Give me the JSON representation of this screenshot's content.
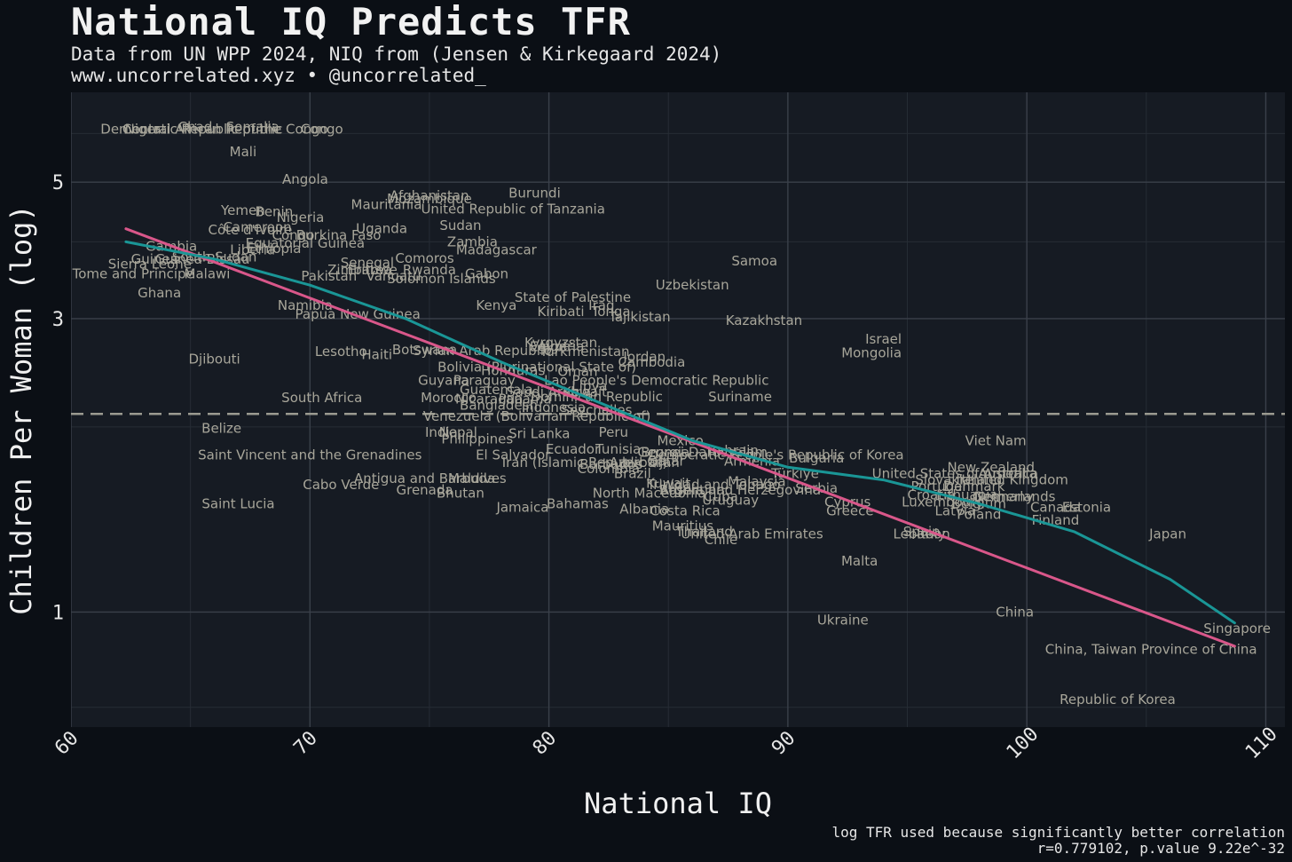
{
  "header": {
    "title": "National IQ Predicts TFR",
    "subtitle": "Data from UN WPP 2024, NIQ from (Jensen & Kirkegaard 2024)",
    "byline": "www.uncorrelated.xyz • @uncorrelated_"
  },
  "footer": {
    "note": "log TFR used because significantly better correlation",
    "stats": "r=0.779102, p.value 9.22e^-32"
  },
  "colors": {
    "background": "#0b0f15",
    "panel": "#161b23",
    "grid": "#3a404a",
    "label": "#a8a69a",
    "linear_fit": "#d9578a",
    "smooth_fit": "#1a9696",
    "reference_line": "#9a9a90"
  },
  "chart_data": {
    "type": "scatter",
    "xlabel": "National IQ",
    "ylabel": "Children Per Woman (log)",
    "x_ticks": [
      60,
      70,
      80,
      90,
      100,
      110
    ],
    "y_ticks": [
      1,
      3,
      5
    ],
    "y_scale": "log",
    "xlim": [
      60,
      110.8
    ],
    "ylim": [
      0.65,
      7.0
    ],
    "grid": true,
    "reference_line": {
      "y": 2.1,
      "style": "dashed"
    },
    "fits": [
      {
        "kind": "linear",
        "color": "#d9578a",
        "points": [
          [
            62.3,
            4.2
          ],
          [
            108.7,
            0.88
          ]
        ]
      },
      {
        "kind": "loess",
        "color": "#1a9696",
        "points": [
          [
            62.3,
            4.0
          ],
          [
            66,
            3.75
          ],
          [
            70,
            3.4
          ],
          [
            74,
            3.0
          ],
          [
            78,
            2.55
          ],
          [
            82,
            2.2
          ],
          [
            86,
            1.9
          ],
          [
            90,
            1.72
          ],
          [
            94,
            1.64
          ],
          [
            98,
            1.5
          ],
          [
            102,
            1.35
          ],
          [
            106,
            1.13
          ],
          [
            108.7,
            0.96
          ]
        ]
      }
    ],
    "points": [
      {
        "label": "Niger",
        "x": 63.0,
        "y": 6.1
      },
      {
        "label": "Democratic Republic of the Congo",
        "x": 66.0,
        "y": 6.1
      },
      {
        "label": "Central African Republic",
        "x": 65.5,
        "y": 6.1
      },
      {
        "label": "Chad",
        "x": 65.2,
        "y": 6.15
      },
      {
        "label": "Somalia",
        "x": 67.6,
        "y": 6.15
      },
      {
        "label": "Congo",
        "x": 70.5,
        "y": 6.1
      },
      {
        "label": "Mali",
        "x": 67.2,
        "y": 5.6
      },
      {
        "label": "Angola",
        "x": 69.8,
        "y": 5.05
      },
      {
        "label": "Burundi",
        "x": 79.4,
        "y": 4.8
      },
      {
        "label": "Afghanistan",
        "x": 75.0,
        "y": 4.75
      },
      {
        "label": "Mozambique",
        "x": 75.0,
        "y": 4.7
      },
      {
        "label": "Mauritania",
        "x": 73.2,
        "y": 4.6
      },
      {
        "label": "United Republic of Tanzania",
        "x": 78.5,
        "y": 4.52
      },
      {
        "label": "Yemen",
        "x": 67.2,
        "y": 4.5
      },
      {
        "label": "Benin",
        "x": 68.5,
        "y": 4.48
      },
      {
        "label": "Nigeria",
        "x": 69.6,
        "y": 4.38
      },
      {
        "label": "Cameroon",
        "x": 67.8,
        "y": 4.22
      },
      {
        "label": "Côte d'Ivoire",
        "x": 67.5,
        "y": 4.18
      },
      {
        "label": "Uganda",
        "x": 73.0,
        "y": 4.2
      },
      {
        "label": "Sudan",
        "x": 76.3,
        "y": 4.25
      },
      {
        "label": "Congo",
        "x": 69.3,
        "y": 4.1
      },
      {
        "label": "Burkina Faso",
        "x": 71.2,
        "y": 4.1
      },
      {
        "label": "Equatorial Guinea",
        "x": 69.8,
        "y": 3.98
      },
      {
        "label": "Zambia",
        "x": 76.8,
        "y": 4.0
      },
      {
        "label": "Gambia",
        "x": 64.2,
        "y": 3.93
      },
      {
        "label": "Liberia",
        "x": 67.6,
        "y": 3.88
      },
      {
        "label": "Ethiopia",
        "x": 68.5,
        "y": 3.9
      },
      {
        "label": "Madagascar",
        "x": 77.8,
        "y": 3.88
      },
      {
        "label": "Guinea",
        "x": 63.5,
        "y": 3.75
      },
      {
        "label": "South Sudan",
        "x": 66.0,
        "y": 3.78
      },
      {
        "label": "Guinea-Bissau",
        "x": 65.5,
        "y": 3.75
      },
      {
        "label": "Comoros",
        "x": 74.8,
        "y": 3.76
      },
      {
        "label": "Senegal",
        "x": 72.4,
        "y": 3.7
      },
      {
        "label": "Sierra Leone",
        "x": 63.3,
        "y": 3.68
      },
      {
        "label": "Samoa",
        "x": 88.6,
        "y": 3.72
      },
      {
        "label": "Zimbabwe",
        "x": 72.2,
        "y": 3.6
      },
      {
        "label": "Eritrea",
        "x": 72.5,
        "y": 3.6
      },
      {
        "label": "Rwanda",
        "x": 75.0,
        "y": 3.6
      },
      {
        "label": "Sao Tome and Principe",
        "x": 62.0,
        "y": 3.55
      },
      {
        "label": "Malawi",
        "x": 65.7,
        "y": 3.55
      },
      {
        "label": "Gabon",
        "x": 77.4,
        "y": 3.55
      },
      {
        "label": "Pakistan",
        "x": 70.8,
        "y": 3.52
      },
      {
        "label": "Vanuatu",
        "x": 73.5,
        "y": 3.52
      },
      {
        "label": "Solomon Islands",
        "x": 75.5,
        "y": 3.48
      },
      {
        "label": "Uzbekistan",
        "x": 86.0,
        "y": 3.4
      },
      {
        "label": "Ghana",
        "x": 63.7,
        "y": 3.3
      },
      {
        "label": "State of Palestine",
        "x": 81.0,
        "y": 3.25
      },
      {
        "label": "Namibia",
        "x": 69.8,
        "y": 3.15
      },
      {
        "label": "Kenya",
        "x": 77.8,
        "y": 3.15
      },
      {
        "label": "Iraq",
        "x": 82.2,
        "y": 3.15
      },
      {
        "label": "Kiribati",
        "x": 80.5,
        "y": 3.08
      },
      {
        "label": "Tonga",
        "x": 82.6,
        "y": 3.08
      },
      {
        "label": "Papua New Guinea",
        "x": 72.0,
        "y": 3.05
      },
      {
        "label": "Tajikistan",
        "x": 83.8,
        "y": 3.02
      },
      {
        "label": "Kazakhstan",
        "x": 89.0,
        "y": 2.98
      },
      {
        "label": "Israel",
        "x": 94.0,
        "y": 2.78
      },
      {
        "label": "Kyrgyzstan",
        "x": 80.5,
        "y": 2.74
      },
      {
        "label": "Egypt",
        "x": 80.0,
        "y": 2.7
      },
      {
        "label": "Algeria",
        "x": 80.5,
        "y": 2.7
      },
      {
        "label": "Botswana",
        "x": 74.8,
        "y": 2.67
      },
      {
        "label": "Syrian Arab Republic",
        "x": 77.2,
        "y": 2.66
      },
      {
        "label": "Turkmenistan",
        "x": 81.5,
        "y": 2.65
      },
      {
        "label": "Lesotho",
        "x": 71.3,
        "y": 2.65
      },
      {
        "label": "Mongolia",
        "x": 93.5,
        "y": 2.64
      },
      {
        "label": "Haiti",
        "x": 72.8,
        "y": 2.62
      },
      {
        "label": "Jordan",
        "x": 84.0,
        "y": 2.6
      },
      {
        "label": "Djibouti",
        "x": 66.0,
        "y": 2.58
      },
      {
        "label": "Cambodia",
        "x": 84.3,
        "y": 2.55
      },
      {
        "label": "Bolivia (Plurinational State of)",
        "x": 79.5,
        "y": 2.5
      },
      {
        "label": "Honduras",
        "x": 78.5,
        "y": 2.47
      },
      {
        "label": "Oman",
        "x": 81.2,
        "y": 2.46
      },
      {
        "label": "Guyana",
        "x": 75.6,
        "y": 2.38
      },
      {
        "label": "Paraguay",
        "x": 77.3,
        "y": 2.38
      },
      {
        "label": "Lao People's Democratic Republic",
        "x": 84.5,
        "y": 2.38
      },
      {
        "label": "Libya",
        "x": 81.7,
        "y": 2.33
      },
      {
        "label": "Guatemala",
        "x": 77.8,
        "y": 2.3
      },
      {
        "label": "Saudi Arabia",
        "x": 80.0,
        "y": 2.28
      },
      {
        "label": "Kuwait",
        "x": 81.5,
        "y": 2.28
      },
      {
        "label": "South Africa",
        "x": 70.5,
        "y": 2.23
      },
      {
        "label": "Morocco",
        "x": 75.8,
        "y": 2.23
      },
      {
        "label": "Nicaragua",
        "x": 77.5,
        "y": 2.22
      },
      {
        "label": "Dominican Republic",
        "x": 82.0,
        "y": 2.24
      },
      {
        "label": "Suriname",
        "x": 88.0,
        "y": 2.24
      },
      {
        "label": "Panama",
        "x": 79.0,
        "y": 2.22
      },
      {
        "label": "Bangladesh",
        "x": 77.9,
        "y": 2.17
      },
      {
        "label": "Indonesia",
        "x": 80.2,
        "y": 2.15
      },
      {
        "label": "Seychelles",
        "x": 82.0,
        "y": 2.13
      },
      {
        "label": "Venezuela (Bolivarian Republic of)",
        "x": 79.5,
        "y": 2.08
      },
      {
        "label": "Belize",
        "x": 66.3,
        "y": 1.99
      },
      {
        "label": "India",
        "x": 75.5,
        "y": 1.96
      },
      {
        "label": "Nepal",
        "x": 76.2,
        "y": 1.96
      },
      {
        "label": "Peru",
        "x": 82.7,
        "y": 1.96
      },
      {
        "label": "Sri Lanka",
        "x": 79.6,
        "y": 1.95
      },
      {
        "label": "Philippines",
        "x": 77.0,
        "y": 1.91
      },
      {
        "label": "Mexico",
        "x": 85.5,
        "y": 1.9
      },
      {
        "label": "Viet Nam",
        "x": 98.7,
        "y": 1.9
      },
      {
        "label": "Ecuador",
        "x": 81.0,
        "y": 1.84
      },
      {
        "label": "Tunisia",
        "x": 82.9,
        "y": 1.84
      },
      {
        "label": "Bahrain",
        "x": 87.7,
        "y": 1.83
      },
      {
        "label": "El Salvador",
        "x": 78.5,
        "y": 1.8
      },
      {
        "label": "Saint Vincent and the Grenadines",
        "x": 70.0,
        "y": 1.8
      },
      {
        "label": "Georgia",
        "x": 84.8,
        "y": 1.82
      },
      {
        "label": "Brunei Darussalam",
        "x": 86.5,
        "y": 1.82
      },
      {
        "label": "Democratic People's Republic of Korea",
        "x": 89.5,
        "y": 1.8
      },
      {
        "label": "Bulgaria",
        "x": 91.2,
        "y": 1.78
      },
      {
        "label": "Iran (Islamic Republic of)",
        "x": 81.5,
        "y": 1.75
      },
      {
        "label": "Azerbaijan",
        "x": 84.0,
        "y": 1.75
      },
      {
        "label": "Qatar",
        "x": 84.9,
        "y": 1.76
      },
      {
        "label": "Barbados",
        "x": 82.6,
        "y": 1.74
      },
      {
        "label": "Armenia",
        "x": 88.5,
        "y": 1.76
      },
      {
        "label": "Colombia",
        "x": 82.5,
        "y": 1.71
      },
      {
        "label": "Brazil",
        "x": 83.5,
        "y": 1.68
      },
      {
        "label": "Türkiye",
        "x": 90.3,
        "y": 1.68
      },
      {
        "label": "New Zealand",
        "x": 98.5,
        "y": 1.72
      },
      {
        "label": "United States of America",
        "x": 97.0,
        "y": 1.68
      },
      {
        "label": "Australia",
        "x": 99.2,
        "y": 1.68
      },
      {
        "label": "Antigua and Barbuda",
        "x": 74.8,
        "y": 1.65
      },
      {
        "label": "Maldives",
        "x": 77.0,
        "y": 1.65
      },
      {
        "label": "Slovakia",
        "x": 96.5,
        "y": 1.64
      },
      {
        "label": "Ireland",
        "x": 98.0,
        "y": 1.64
      },
      {
        "label": "United Kingdom",
        "x": 99.5,
        "y": 1.64
      },
      {
        "label": "Malaysia",
        "x": 88.7,
        "y": 1.63
      },
      {
        "label": "Kuwait",
        "x": 85.0,
        "y": 1.62
      },
      {
        "label": "Trinidad and Tobago",
        "x": 86.9,
        "y": 1.61
      },
      {
        "label": "Cabo Verde",
        "x": 71.3,
        "y": 1.61
      },
      {
        "label": "Portugal",
        "x": 96.3,
        "y": 1.6
      },
      {
        "label": "Denmark",
        "x": 97.8,
        "y": 1.6
      },
      {
        "label": "Grenada",
        "x": 74.8,
        "y": 1.58
      },
      {
        "label": "Serbia",
        "x": 91.2,
        "y": 1.59
      },
      {
        "label": "Bosnia and Herzegovina",
        "x": 88.0,
        "y": 1.58
      },
      {
        "label": "Argentina",
        "x": 86.0,
        "y": 1.58
      },
      {
        "label": "Bhutan",
        "x": 76.3,
        "y": 1.56
      },
      {
        "label": "North Macedonia",
        "x": 84.2,
        "y": 1.56
      },
      {
        "label": "Croatia",
        "x": 96.0,
        "y": 1.55
      },
      {
        "label": "Lithuania",
        "x": 97.5,
        "y": 1.55
      },
      {
        "label": "Cuba",
        "x": 87.2,
        "y": 1.54
      },
      {
        "label": "Netherlands",
        "x": 99.5,
        "y": 1.54
      },
      {
        "label": "Germany",
        "x": 99.0,
        "y": 1.54
      },
      {
        "label": "Uruguay",
        "x": 87.6,
        "y": 1.52
      },
      {
        "label": "Luxembourg",
        "x": 96.5,
        "y": 1.51
      },
      {
        "label": "Belgium",
        "x": 98.0,
        "y": 1.5
      },
      {
        "label": "Cyprus",
        "x": 92.5,
        "y": 1.51
      },
      {
        "label": "Saint Lucia",
        "x": 67.0,
        "y": 1.5
      },
      {
        "label": "Bahamas",
        "x": 81.2,
        "y": 1.5
      },
      {
        "label": "Jamaica",
        "x": 78.9,
        "y": 1.48
      },
      {
        "label": "Albania",
        "x": 84.0,
        "y": 1.47
      },
      {
        "label": "Latvia",
        "x": 97.0,
        "y": 1.46
      },
      {
        "label": "Canada",
        "x": 101.2,
        "y": 1.48
      },
      {
        "label": "Estonia",
        "x": 102.5,
        "y": 1.48
      },
      {
        "label": "Greece",
        "x": 92.6,
        "y": 1.46
      },
      {
        "label": "Costa Rica",
        "x": 85.7,
        "y": 1.46
      },
      {
        "label": "Poland",
        "x": 98.0,
        "y": 1.44
      },
      {
        "label": "Finland",
        "x": 101.2,
        "y": 1.41
      },
      {
        "label": "Mauritius",
        "x": 85.6,
        "y": 1.38
      },
      {
        "label": "Thailand",
        "x": 86.5,
        "y": 1.35
      },
      {
        "label": "Spain",
        "x": 95.6,
        "y": 1.35
      },
      {
        "label": "Lebanon",
        "x": 95.6,
        "y": 1.34
      },
      {
        "label": "Italy",
        "x": 96.0,
        "y": 1.34
      },
      {
        "label": "United Arab Emirates",
        "x": 88.5,
        "y": 1.34
      },
      {
        "label": "Japan",
        "x": 105.9,
        "y": 1.34
      },
      {
        "label": "Chile",
        "x": 87.2,
        "y": 1.31
      },
      {
        "label": "Malta",
        "x": 93.0,
        "y": 1.21
      },
      {
        "label": "China",
        "x": 99.5,
        "y": 1.0
      },
      {
        "label": "Ukraine",
        "x": 92.3,
        "y": 0.97
      },
      {
        "label": "Singapore",
        "x": 108.8,
        "y": 0.94
      },
      {
        "label": "China, Taiwan Province of China",
        "x": 105.2,
        "y": 0.87
      },
      {
        "label": "Republic of Korea",
        "x": 103.8,
        "y": 0.72
      }
    ]
  }
}
